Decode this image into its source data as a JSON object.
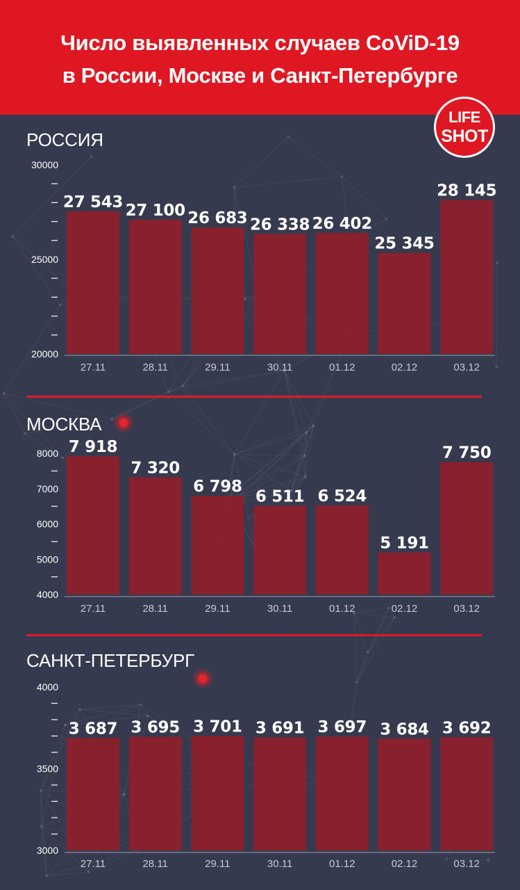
{
  "header": {
    "title_line1": "Число выявленных случаев CoViD-19",
    "title_line2": "в России, Москве и Санкт-Петербурге",
    "logo_top": "LIFE",
    "logo_bottom": "SHOT"
  },
  "colors": {
    "banner": "#df1722",
    "background": "#363a4e",
    "bar": "#8e1e2c",
    "divider": "#e01b26"
  },
  "sections": [
    {
      "title": "РОССИЯ"
    },
    {
      "title": "МОСКВА"
    },
    {
      "title": "САНКТ-ПЕТЕРБУРГ"
    }
  ],
  "chart_data": [
    {
      "type": "bar",
      "title": "РОССИЯ",
      "categories": [
        "27.11",
        "28.11",
        "29.11",
        "30.11",
        "01.12",
        "02.12",
        "03.12"
      ],
      "values": [
        27543,
        27100,
        26683,
        26338,
        26402,
        25345,
        28145
      ],
      "value_labels": [
        "27 543",
        "27 100",
        "26 683",
        "26 338",
        "26 402",
        "25 345",
        "28 145"
      ],
      "ylim": [
        20000,
        30000
      ],
      "yticks": [
        20000,
        25000,
        30000
      ],
      "ytick_labels": [
        "20000",
        "25000",
        "30000"
      ],
      "minor_ticks": 4,
      "xlabel": "",
      "ylabel": "",
      "grid": false
    },
    {
      "type": "bar",
      "title": "МОСКВА",
      "categories": [
        "27.11",
        "28.11",
        "29.11",
        "30.11",
        "01.12",
        "02.12",
        "03.12"
      ],
      "values": [
        7918,
        7320,
        6798,
        6511,
        6524,
        5191,
        7750
      ],
      "value_labels": [
        "7 918",
        "7 320",
        "6 798",
        "6 511",
        "6 524",
        "5 191",
        "7 750"
      ],
      "ylim": [
        4000,
        8000
      ],
      "yticks": [
        4000,
        5000,
        6000,
        7000,
        8000
      ],
      "ytick_labels": [
        "4000",
        "5000",
        "6000",
        "7000",
        "8000"
      ],
      "minor_ticks": 1,
      "xlabel": "",
      "ylabel": "",
      "grid": false
    },
    {
      "type": "bar",
      "title": "САНКТ-ПЕТЕРБУРГ",
      "categories": [
        "27.11",
        "28.11",
        "29.11",
        "30.11",
        "01.12",
        "02.12",
        "03.12"
      ],
      "values": [
        3687,
        3695,
        3701,
        3691,
        3697,
        3684,
        3692
      ],
      "value_labels": [
        "3 687",
        "3 695",
        "3 701",
        "3 691",
        "3 697",
        "3 684",
        "3 692"
      ],
      "ylim": [
        3000,
        4000
      ],
      "yticks": [
        3000,
        3500,
        4000
      ],
      "ytick_labels": [
        "3000",
        "3500",
        "4000"
      ],
      "minor_ticks": 4,
      "xlabel": "",
      "ylabel": "",
      "grid": false
    }
  ]
}
